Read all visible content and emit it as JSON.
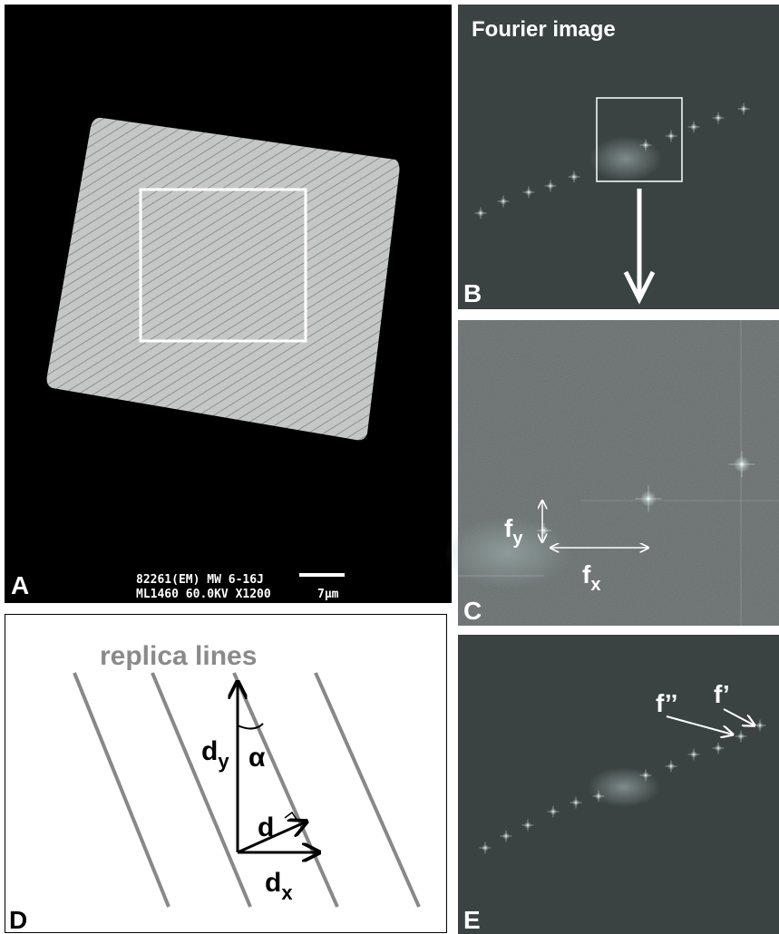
{
  "panels": {
    "A": {
      "label": "A",
      "caption_lines": [
        "82261(EM) MW 6-16J",
        "ML1460  60.0KV  X1200"
      ],
      "scale_label": "7μm"
    },
    "B": {
      "label": "B",
      "title": "Fourier image"
    },
    "C": {
      "label": "C",
      "fy": {
        "base": "f",
        "sub": "y"
      },
      "fx": {
        "base": "f",
        "sub": "x"
      }
    },
    "D": {
      "label": "D",
      "title": "replica lines",
      "dy": {
        "base": "d",
        "sub": "y"
      },
      "alpha": "α",
      "d": "d",
      "dx": {
        "base": "d",
        "sub": "x"
      }
    },
    "E": {
      "label": "E",
      "f2": "f’’",
      "f1": "f’"
    }
  }
}
